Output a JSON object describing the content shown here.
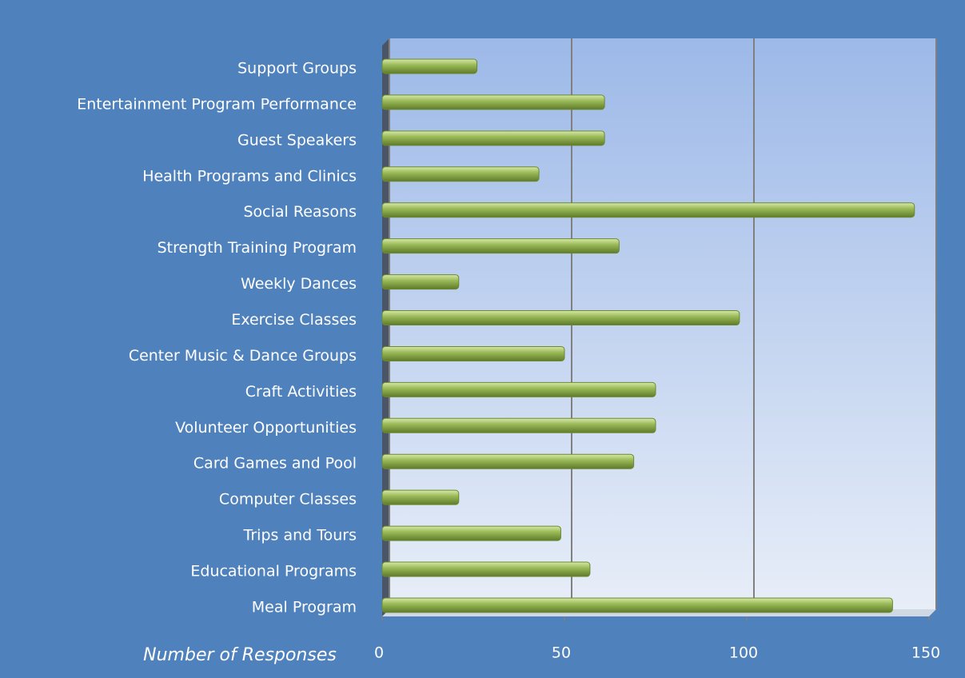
{
  "chart_data": {
    "type": "bar",
    "orientation": "horizontal",
    "x_label": "Number of Responses",
    "categories": [
      "Support Groups",
      "Entertainment Program Performance",
      "Guest Speakers",
      "Health Programs and Clinics",
      "Social Reasons",
      "Strength Training Program",
      "Weekly Dances",
      "Exercise Classes",
      "Center Music & Dance Groups",
      "Craft Activities",
      "Volunteer Opportunities",
      "Card Games and Pool",
      "Computer Classes",
      "Trips and Tours",
      "Educational Programs",
      "Meal Program"
    ],
    "values": [
      26,
      61,
      61,
      43,
      146,
      65,
      21,
      98,
      50,
      75,
      75,
      69,
      21,
      49,
      57,
      140
    ],
    "color": "#9bbb59",
    "xlim": [
      0,
      150
    ],
    "xticks": [
      0,
      50,
      100,
      150
    ],
    "grid": true
  }
}
